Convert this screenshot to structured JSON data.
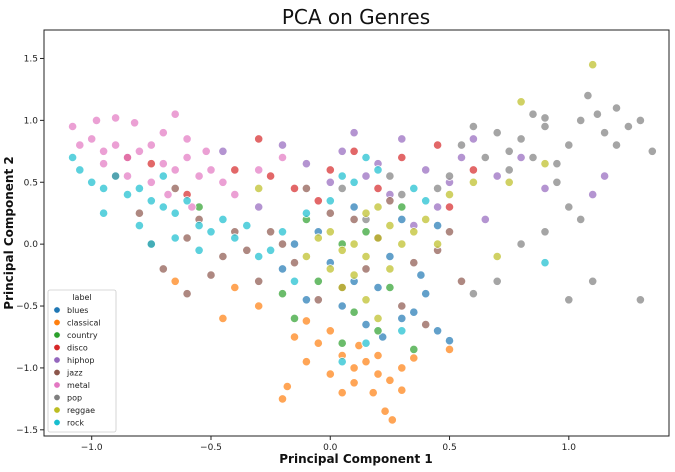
{
  "chart_data": {
    "type": "scatter",
    "title": "PCA on Genres",
    "xlabel": "Principal Component 1",
    "ylabel": "Principal Component 2",
    "xlim": [
      -1.2,
      1.42
    ],
    "ylim": [
      -1.55,
      1.73
    ],
    "xticks": [
      -1.0,
      -0.5,
      0.0,
      0.5,
      1.0
    ],
    "xtick_labels": [
      "−1.0",
      "−0.5",
      "0.0",
      "0.5",
      "1.0"
    ],
    "yticks": [
      -1.5,
      -1.0,
      -0.5,
      0.0,
      0.5,
      1.0,
      1.5
    ],
    "ytick_labels": [
      "−1.5",
      "−1.0",
      "−0.5",
      "0.0",
      "0.5",
      "1.0",
      "1.5"
    ],
    "grid": false,
    "legend": {
      "title": "label",
      "position": "lower-left"
    },
    "series": [
      {
        "name": "blues",
        "color": "#1f77b4",
        "points": [
          [
            0.0,
            -0.15
          ],
          [
            0.1,
            -0.3
          ],
          [
            -0.1,
            -0.45
          ],
          [
            0.3,
            -0.6
          ],
          [
            0.45,
            -0.7
          ],
          [
            0.5,
            -0.78
          ],
          [
            0.35,
            -0.55
          ],
          [
            0.2,
            -0.35
          ],
          [
            -0.2,
            -0.2
          ],
          [
            0.05,
            -0.5
          ],
          [
            0.4,
            -0.4
          ],
          [
            0.15,
            -0.65
          ],
          [
            0.25,
            -0.1
          ],
          [
            -0.05,
            0.1
          ],
          [
            0.3,
            0.2
          ],
          [
            0.45,
            0.15
          ],
          [
            0.1,
            0.3
          ],
          [
            -0.15,
            0.0
          ],
          [
            0.38,
            -0.25
          ],
          [
            0.22,
            -0.75
          ]
        ]
      },
      {
        "name": "classical",
        "color": "#ff7f0e",
        "points": [
          [
            -0.15,
            -0.75
          ],
          [
            -0.05,
            -0.8
          ],
          [
            0.05,
            -0.9
          ],
          [
            0.1,
            -1.0
          ],
          [
            0.15,
            -0.95
          ],
          [
            0.2,
            -1.05
          ],
          [
            0.25,
            -1.1
          ],
          [
            0.3,
            -1.0
          ],
          [
            0.0,
            -1.05
          ],
          [
            -0.1,
            -0.95
          ],
          [
            0.05,
            -1.2
          ],
          [
            0.18,
            -1.2
          ],
          [
            0.23,
            -1.35
          ],
          [
            0.26,
            -1.42
          ],
          [
            -0.18,
            -1.15
          ],
          [
            -0.2,
            -1.25
          ],
          [
            0.35,
            -0.92
          ],
          [
            0.5,
            -0.85
          ],
          [
            -0.45,
            -0.6
          ],
          [
            -0.3,
            -0.5
          ],
          [
            0.0,
            -0.7
          ],
          [
            0.12,
            -0.82
          ],
          [
            -0.65,
            -0.3
          ],
          [
            -0.4,
            -0.35
          ],
          [
            0.3,
            -1.18
          ],
          [
            0.1,
            -1.12
          ],
          [
            -0.1,
            -0.62
          ],
          [
            0.2,
            -0.9
          ]
        ]
      },
      {
        "name": "country",
        "color": "#2ca02c",
        "points": [
          [
            -0.05,
            -0.3
          ],
          [
            0.1,
            -0.55
          ],
          [
            0.2,
            -0.7
          ],
          [
            -0.2,
            -0.4
          ],
          [
            0.05,
            0.0
          ],
          [
            0.15,
            0.1
          ],
          [
            0.3,
            0.3
          ],
          [
            -0.1,
            0.2
          ],
          [
            0.25,
            -0.35
          ],
          [
            -0.55,
            0.3
          ],
          [
            0.05,
            -0.8
          ],
          [
            0.35,
            -0.85
          ],
          [
            -0.15,
            -0.6
          ]
        ]
      },
      {
        "name": "disco",
        "color": "#d62728",
        "points": [
          [
            -0.85,
            0.7
          ],
          [
            -0.75,
            0.65
          ],
          [
            -0.3,
            0.85
          ],
          [
            -0.25,
            0.55
          ],
          [
            0.0,
            0.6
          ],
          [
            0.1,
            0.75
          ],
          [
            0.3,
            0.7
          ],
          [
            0.45,
            0.8
          ],
          [
            -0.15,
            0.45
          ],
          [
            -0.4,
            0.6
          ],
          [
            0.5,
            0.3
          ],
          [
            -0.05,
            0.35
          ],
          [
            0.6,
            0.6
          ],
          [
            0.2,
            0.45
          ],
          [
            -0.9,
            0.55
          ],
          [
            -0.6,
            0.4
          ]
        ]
      },
      {
        "name": "hiphop",
        "color": "#9467bd",
        "points": [
          [
            0.05,
            0.75
          ],
          [
            0.1,
            0.9
          ],
          [
            0.15,
            0.55
          ],
          [
            0.3,
            0.85
          ],
          [
            0.4,
            0.6
          ],
          [
            0.5,
            0.5
          ],
          [
            0.55,
            0.7
          ],
          [
            0.6,
            0.85
          ],
          [
            0.7,
            0.55
          ],
          [
            0.8,
            0.7
          ],
          [
            -0.1,
            0.65
          ],
          [
            -0.2,
            0.8
          ],
          [
            0.25,
            0.4
          ],
          [
            0.45,
            0.3
          ],
          [
            1.1,
            0.4
          ],
          [
            1.15,
            0.55
          ],
          [
            0.9,
            0.45
          ],
          [
            0.35,
            0.15
          ],
          [
            -0.3,
            0.3
          ],
          [
            0.65,
            0.2
          ],
          [
            0.0,
            0.5
          ],
          [
            -0.45,
            0.75
          ],
          [
            0.2,
            0.65
          ]
        ]
      },
      {
        "name": "jazz",
        "color": "#8c564b",
        "points": [
          [
            -0.55,
            0.2
          ],
          [
            -0.6,
            0.05
          ],
          [
            -0.45,
            -0.1
          ],
          [
            -0.5,
            -0.25
          ],
          [
            -0.35,
            -0.05
          ],
          [
            -0.25,
            0.1
          ],
          [
            -0.7,
            -0.2
          ],
          [
            -0.3,
            -0.3
          ],
          [
            -0.8,
            0.25
          ],
          [
            -0.65,
            0.45
          ],
          [
            -0.15,
            -0.15
          ],
          [
            0.05,
            -0.35
          ],
          [
            -0.4,
            0.1
          ],
          [
            -0.2,
            0.0
          ],
          [
            0.1,
            0.2
          ],
          [
            0.25,
            0.35
          ],
          [
            0.35,
            -0.15
          ],
          [
            0.45,
            -0.05
          ],
          [
            0.5,
            0.1
          ],
          [
            -0.05,
            -0.45
          ],
          [
            0.15,
            -0.2
          ],
          [
            0.3,
            -0.5
          ],
          [
            0.4,
            -0.65
          ],
          [
            -0.6,
            -0.4
          ],
          [
            -0.75,
            0.0
          ],
          [
            0.2,
            0.05
          ],
          [
            0.55,
            -0.3
          ],
          [
            -0.1,
            0.45
          ],
          [
            0.0,
            0.25
          ]
        ]
      },
      {
        "name": "metal",
        "color": "#e377c2",
        "points": [
          [
            -1.05,
            0.8
          ],
          [
            -1.0,
            0.85
          ],
          [
            -0.95,
            0.75
          ],
          [
            -0.9,
            0.8
          ],
          [
            -0.85,
            0.7
          ],
          [
            -0.8,
            0.75
          ],
          [
            -0.75,
            0.8
          ],
          [
            -0.7,
            0.65
          ],
          [
            -0.65,
            0.6
          ],
          [
            -0.6,
            0.7
          ],
          [
            -0.55,
            0.55
          ],
          [
            -0.5,
            0.6
          ],
          [
            -0.45,
            0.5
          ],
          [
            -1.08,
            0.95
          ],
          [
            -0.98,
            1.0
          ],
          [
            -0.9,
            1.02
          ],
          [
            -0.82,
            0.98
          ],
          [
            -0.7,
            0.9
          ],
          [
            -0.6,
            0.85
          ],
          [
            -0.52,
            0.75
          ],
          [
            -0.85,
            0.55
          ],
          [
            -0.75,
            0.5
          ],
          [
            -0.68,
            0.4
          ],
          [
            -0.58,
            0.3
          ],
          [
            -0.95,
            0.65
          ],
          [
            -0.4,
            0.4
          ],
          [
            -0.65,
            1.05
          ],
          [
            -0.3,
            0.6
          ],
          [
            -0.2,
            0.7
          ]
        ]
      },
      {
        "name": "pop",
        "color": "#7f7f7f",
        "points": [
          [
            0.7,
            0.9
          ],
          [
            0.75,
            0.75
          ],
          [
            0.8,
            0.85
          ],
          [
            0.85,
            0.7
          ],
          [
            0.9,
            0.95
          ],
          [
            0.95,
            0.65
          ],
          [
            1.0,
            0.8
          ],
          [
            1.05,
            1.0
          ],
          [
            1.08,
            1.2
          ],
          [
            1.12,
            1.05
          ],
          [
            1.15,
            0.9
          ],
          [
            1.2,
            0.8
          ],
          [
            1.25,
            0.95
          ],
          [
            1.3,
            1.0
          ],
          [
            1.35,
            0.75
          ],
          [
            0.6,
            0.95
          ],
          [
            0.55,
            0.8
          ],
          [
            0.65,
            0.7
          ],
          [
            0.85,
            1.05
          ],
          [
            0.9,
            1.02
          ],
          [
            1.0,
            0.3
          ],
          [
            1.05,
            0.2
          ],
          [
            0.9,
            0.1
          ],
          [
            0.8,
            0.0
          ],
          [
            0.7,
            -0.3
          ],
          [
            0.6,
            -0.4
          ],
          [
            1.3,
            -0.45
          ],
          [
            1.1,
            -0.3
          ],
          [
            1.0,
            -0.45
          ],
          [
            0.3,
            0.4
          ],
          [
            0.45,
            0.45
          ],
          [
            0.5,
            0.55
          ],
          [
            0.25,
            0.55
          ],
          [
            0.15,
            0.2
          ],
          [
            0.05,
            0.45
          ],
          [
            0.75,
            0.6
          ],
          [
            0.95,
            0.5
          ],
          [
            1.2,
            1.1
          ]
        ]
      },
      {
        "name": "reggae",
        "color": "#bcbd22",
        "points": [
          [
            0.0,
            0.1
          ],
          [
            0.05,
            -0.05
          ],
          [
            0.1,
            0.0
          ],
          [
            0.15,
            -0.1
          ],
          [
            0.2,
            0.05
          ],
          [
            0.25,
            -0.2
          ],
          [
            0.3,
            0.0
          ],
          [
            0.1,
            -0.25
          ],
          [
            0.05,
            -0.35
          ],
          [
            0.15,
            0.25
          ],
          [
            0.2,
            0.3
          ],
          [
            0.35,
            0.1
          ],
          [
            0.4,
            0.2
          ],
          [
            0.45,
            0.0
          ],
          [
            0.6,
            0.5
          ],
          [
            0.75,
            0.5
          ],
          [
            0.8,
            1.15
          ],
          [
            1.1,
            1.45
          ],
          [
            -0.1,
            -0.1
          ],
          [
            -0.05,
            0.05
          ],
          [
            0.0,
            -0.2
          ],
          [
            0.25,
            0.15
          ],
          [
            0.5,
            0.4
          ],
          [
            0.7,
            -0.1
          ],
          [
            0.9,
            0.65
          ],
          [
            0.15,
            -0.45
          ],
          [
            -0.3,
            0.45
          ],
          [
            0.2,
            -0.6
          ]
        ]
      },
      {
        "name": "rock",
        "color": "#17becf",
        "points": [
          [
            -1.05,
            0.6
          ],
          [
            -1.0,
            0.5
          ],
          [
            -0.95,
            0.45
          ],
          [
            -0.9,
            0.55
          ],
          [
            -0.85,
            0.4
          ],
          [
            -0.8,
            0.45
          ],
          [
            -0.75,
            0.35
          ],
          [
            -0.7,
            0.3
          ],
          [
            -0.65,
            0.25
          ],
          [
            -0.6,
            0.35
          ],
          [
            -0.55,
            0.15
          ],
          [
            -0.5,
            0.1
          ],
          [
            -0.45,
            0.2
          ],
          [
            -0.4,
            0.05
          ],
          [
            -0.35,
            0.15
          ],
          [
            -0.3,
            -0.1
          ],
          [
            -0.25,
            -0.05
          ],
          [
            -0.2,
            0.1
          ],
          [
            -0.1,
            0.25
          ],
          [
            0.0,
            0.35
          ],
          [
            0.1,
            0.5
          ],
          [
            0.2,
            0.6
          ],
          [
            -0.8,
            0.15
          ],
          [
            -0.75,
            0.0
          ],
          [
            -0.65,
            0.05
          ],
          [
            -0.55,
            -0.05
          ],
          [
            -1.08,
            0.7
          ],
          [
            -0.7,
            0.55
          ],
          [
            0.05,
            0.55
          ],
          [
            0.15,
            0.7
          ],
          [
            0.4,
            0.35
          ],
          [
            0.3,
            -0.7
          ],
          [
            0.15,
            -0.8
          ],
          [
            0.05,
            -0.95
          ],
          [
            -0.15,
            -0.3
          ],
          [
            0.35,
            0.45
          ],
          [
            0.9,
            -0.15
          ],
          [
            -0.95,
            0.25
          ]
        ]
      }
    ]
  }
}
